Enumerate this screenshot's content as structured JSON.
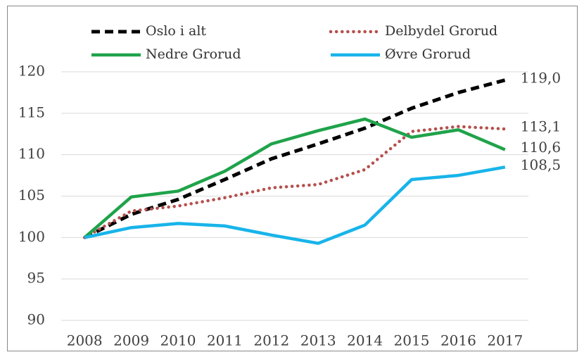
{
  "chart_data": {
    "type": "line",
    "categories": [
      "2008",
      "2009",
      "2010",
      "2011",
      "2012",
      "2013",
      "2014",
      "2015",
      "2016",
      "2017"
    ],
    "ylim": [
      90,
      120
    ],
    "yticks": [
      90,
      95,
      100,
      105,
      110,
      115,
      120
    ],
    "grid": true,
    "series": [
      {
        "name": "Oslo i alt",
        "color": "#000000",
        "style": "dashed",
        "values": [
          100,
          102.8,
          104.6,
          107,
          109.5,
          111.3,
          113.2,
          115.6,
          117.5,
          119.0
        ],
        "value_labels": [
          null,
          null,
          null,
          null,
          null,
          null,
          null,
          null,
          null,
          "119,0"
        ]
      },
      {
        "name": "Delbydel Grorud",
        "color": "#b5504d",
        "style": "dotted",
        "values": [
          100,
          103.2,
          103.8,
          104.8,
          106,
          106.4,
          108.2,
          112.8,
          113.4,
          113.1
        ],
        "value_labels": [
          null,
          null,
          null,
          null,
          null,
          null,
          null,
          null,
          null,
          "113,1"
        ]
      },
      {
        "name": "Nedre Grorud",
        "color": "#1fa34a",
        "style": "solid",
        "values": [
          100,
          104.9,
          105.6,
          108,
          111.3,
          112.9,
          114.3,
          112.1,
          113,
          110.6
        ],
        "value_labels": [
          null,
          null,
          null,
          null,
          null,
          null,
          null,
          null,
          null,
          "110,6"
        ]
      },
      {
        "name": "Øvre Grorud",
        "color": "#18b4ea",
        "style": "solid",
        "values": [
          100,
          101.2,
          101.7,
          101.4,
          100.3,
          99.3,
          101.5,
          107,
          107.5,
          108.5
        ],
        "value_labels": [
          null,
          null,
          null,
          null,
          null,
          null,
          null,
          null,
          null,
          "108,5"
        ]
      }
    ]
  }
}
